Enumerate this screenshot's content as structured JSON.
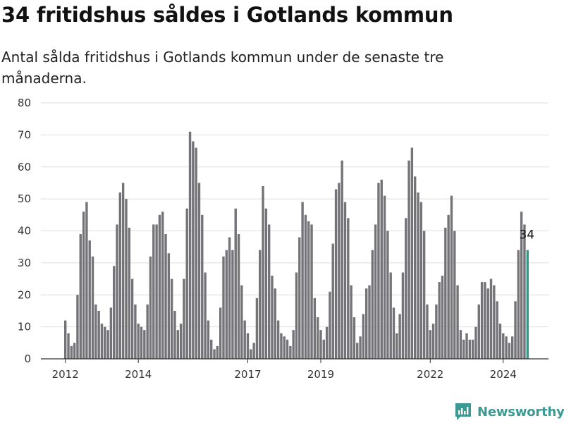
{
  "header": {
    "title": "34 fritidshus såldes i Gotlands kommun",
    "subtitle": "Antal sålda fritidshus i Gotlands kommun under de senaste tre månaderna."
  },
  "brand": {
    "name": "Newsworthy",
    "icon": "newsworthy-logo-icon"
  },
  "colors": {
    "bar": "#747377",
    "highlight": "#2a9d8f",
    "grid": "#dddddd",
    "brand": "#3a9a93"
  },
  "chart_data": {
    "type": "bar",
    "title": "34 fritidshus såldes i Gotlands kommun",
    "subtitle": "Antal sålda fritidshus i Gotlands kommun under de senaste tre månaderna.",
    "xlabel": "",
    "ylabel": "",
    "ylim": [
      0,
      80
    ],
    "yticks": [
      0,
      10,
      20,
      30,
      40,
      50,
      60,
      70,
      80
    ],
    "xticks": [
      "2012",
      "2014",
      "2017",
      "2019",
      "2022",
      "2024"
    ],
    "grid": true,
    "values": [
      12,
      8,
      4,
      5,
      20,
      39,
      46,
      49,
      37,
      32,
      17,
      15,
      11,
      10,
      9,
      16,
      29,
      42,
      52,
      55,
      50,
      41,
      25,
      17,
      11,
      10,
      9,
      17,
      32,
      42,
      42,
      45,
      46,
      39,
      33,
      25,
      15,
      9,
      11,
      25,
      47,
      71,
      68,
      66,
      55,
      45,
      27,
      12,
      6,
      3,
      4,
      16,
      32,
      34,
      38,
      34,
      47,
      39,
      23,
      12,
      8,
      3,
      5,
      19,
      34,
      54,
      47,
      42,
      26,
      22,
      12,
      8,
      7,
      6,
      4,
      9,
      27,
      38,
      49,
      45,
      43,
      42,
      19,
      13,
      9,
      6,
      10,
      21,
      36,
      53,
      55,
      62,
      49,
      44,
      23,
      13,
      5,
      7,
      14,
      22,
      23,
      34,
      42,
      55,
      56,
      51,
      40,
      27,
      16,
      8,
      14,
      27,
      44,
      62,
      66,
      57,
      52,
      49,
      40,
      17,
      9,
      11,
      17,
      24,
      26,
      41,
      45,
      51,
      40,
      23,
      9,
      6,
      8,
      6,
      6,
      10,
      17,
      24,
      24,
      22,
      25,
      23,
      18,
      11,
      8,
      7,
      5,
      7,
      18,
      34,
      46,
      42,
      34
    ],
    "highlight_last": true,
    "annotation": {
      "label": "34",
      "value": 34
    }
  }
}
